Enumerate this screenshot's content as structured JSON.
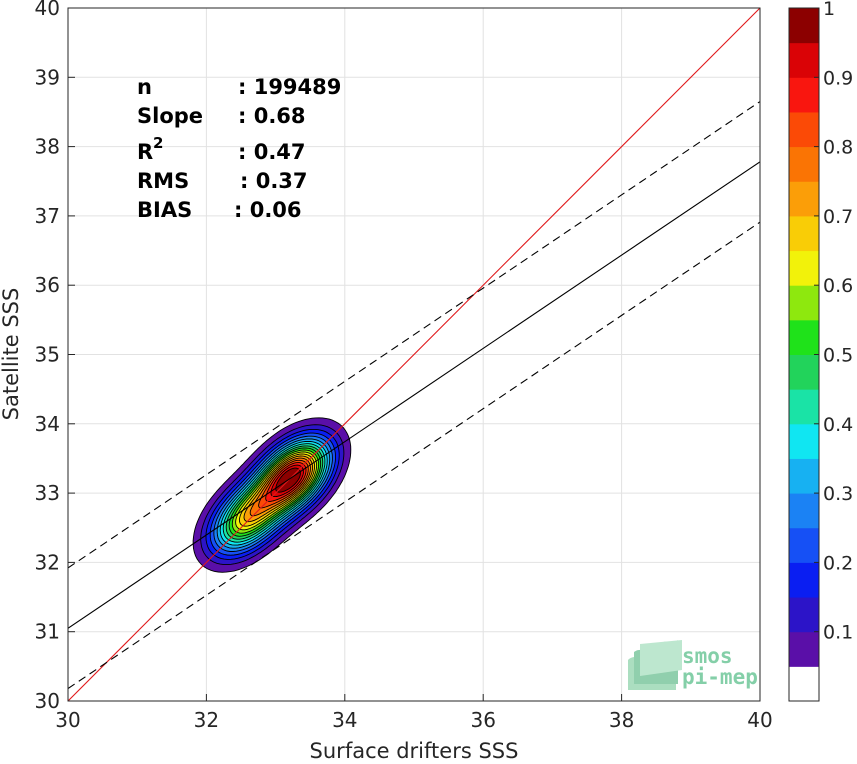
{
  "chart_data": {
    "type": "heatmap",
    "xlabel": "Surface drifters SSS",
    "ylabel": "Satellite SSS",
    "xlim": [
      30,
      40
    ],
    "ylim": [
      30,
      40
    ],
    "xticks": [
      "30",
      "32",
      "34",
      "36",
      "38",
      "40"
    ],
    "yticks": [
      "30",
      "31",
      "32",
      "33",
      "34",
      "35",
      "36",
      "37",
      "38",
      "39",
      "40"
    ],
    "grid": true,
    "stats": [
      {
        "label": "n",
        "sep": ": 199489"
      },
      {
        "label": "Slope",
        "sep": ": 0.68"
      },
      {
        "label": "R",
        "sup": "2",
        "sep": ": 0.47"
      },
      {
        "label": "RMS",
        "sep": ": 0.37"
      },
      {
        "label": "BIAS",
        "sep": ": 0.06"
      }
    ],
    "lines": [
      {
        "name": "identity",
        "color": "#e0191b",
        "style": "solid",
        "points": [
          [
            30,
            30
          ],
          [
            40,
            40
          ]
        ]
      },
      {
        "name": "regression",
        "color": "#000000",
        "style": "solid",
        "points": [
          [
            30,
            31.05
          ],
          [
            40,
            37.78
          ]
        ]
      },
      {
        "name": "upper",
        "color": "#000000",
        "style": "dashed",
        "points": [
          [
            30,
            31.92
          ],
          [
            40,
            38.65
          ]
        ]
      },
      {
        "name": "lower",
        "color": "#000000",
        "style": "dashed",
        "points": [
          [
            30,
            30.18
          ],
          [
            40,
            36.91
          ]
        ]
      }
    ],
    "density_peaks": [
      {
        "x": 33.25,
        "y": 33.25,
        "value": 1.0
      },
      {
        "x": 32.58,
        "y": 32.63,
        "value": 0.65
      }
    ],
    "colorbar": {
      "range": [
        0,
        1
      ],
      "ticks": [
        "0.1",
        "0.2",
        "0.3",
        "0.4",
        "0.5",
        "0.6",
        "0.7",
        "0.8",
        "0.9",
        "1"
      ],
      "colors": [
        "#ffffff",
        "#5a0fa8",
        "#2c14c8",
        "#0a1ef2",
        "#1650f5",
        "#1b82f4",
        "#17b1f2",
        "#10e6f2",
        "#1ae3a6",
        "#22d35b",
        "#1fe21a",
        "#8ee80e",
        "#f2f20a",
        "#f9cd06",
        "#fb9e08",
        "#fa7404",
        "#fb4a06",
        "#f9160f",
        "#da0306",
        "#8c0000"
      ]
    }
  },
  "logo": {
    "line1": "smos",
    "line2": "pi-mep"
  }
}
